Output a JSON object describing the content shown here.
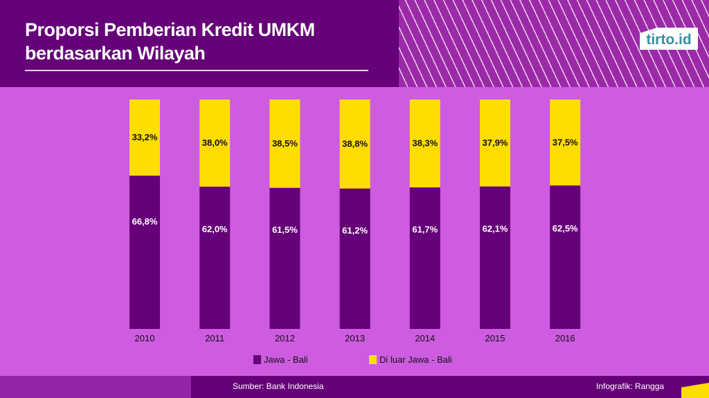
{
  "header": {
    "title_line1": "Proporsi Pemberian Kredit UMKM",
    "title_line2": "berdasarkan Wilayah",
    "logo": "tirto.id"
  },
  "footer": {
    "source": "Sumber: Bank Indonesia",
    "credit": "Infografik: Rangga"
  },
  "chart_data": {
    "type": "bar",
    "stacked": true,
    "categories": [
      "2010",
      "2011",
      "2012",
      "2013",
      "2014",
      "2015",
      "2016"
    ],
    "series": [
      {
        "name": "Jawa - Bali",
        "color": "#650078",
        "values": [
          66.8,
          62.0,
          61.5,
          61.2,
          61.7,
          62.1,
          62.5
        ],
        "labels": [
          "66,8%",
          "62,0%",
          "61,5%",
          "61,2%",
          "61,7%",
          "62,1%",
          "62,5%"
        ]
      },
      {
        "name": "Di luar Jawa - Bali",
        "color": "#ffdd00",
        "values": [
          33.2,
          38.0,
          38.5,
          38.8,
          38.3,
          37.9,
          37.5
        ],
        "labels": [
          "33,2%",
          "38,0%",
          "38,5%",
          "38,8%",
          "38,3%",
          "37,9%",
          "37,5%"
        ]
      }
    ],
    "ylim": [
      0,
      100
    ],
    "legend": "bottom",
    "grid": false
  }
}
